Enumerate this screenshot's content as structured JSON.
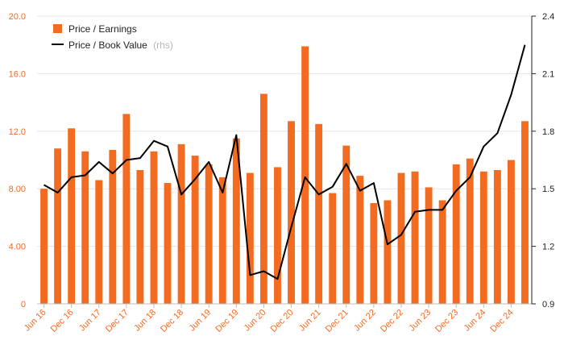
{
  "chart_data": {
    "type": "bar",
    "title": "",
    "xlabel": "",
    "ylabel": "",
    "x": [
      "Jun 16",
      "Sep 16",
      "Dec 16",
      "Mar 17",
      "Jun 17",
      "Sep 17",
      "Dec 17",
      "Mar 18",
      "Jun 18",
      "Sep 18",
      "Dec 18",
      "Mar 19",
      "Jun 19",
      "Sep 19",
      "Dec 19",
      "Mar 20",
      "Jun 20",
      "Sep 20",
      "Dec 20",
      "Mar 21",
      "Jun 21",
      "Sep 21",
      "Dec 21",
      "Mar 22",
      "Jun 22",
      "Sep 22",
      "Dec 22",
      "Mar 23",
      "Jun 23",
      "Sep 23",
      "Dec 23",
      "Mar 24",
      "Jun 24",
      "Sep 24",
      "Dec 24",
      "Mar 25"
    ],
    "x_tick_labels": [
      "Jun 16",
      "Dec 16",
      "Jun 17",
      "Dec 17",
      "Jun 18",
      "Dec 18",
      "Jun 19",
      "Dec 19",
      "Jun 20",
      "Dec 20",
      "Jun 21",
      "Dec 21",
      "Jun 22",
      "Dec 22",
      "Jun 23",
      "Dec 23",
      "Jun 24",
      "Dec 24"
    ],
    "left_axis": {
      "ylim": [
        0,
        20
      ],
      "ticks": [
        "0",
        "4.00",
        "8.00",
        "12.0",
        "16.0",
        "20.0"
      ],
      "color": "#f26b21"
    },
    "right_axis": {
      "ylim": [
        0.9,
        2.4
      ],
      "ticks": [
        "0.9",
        "1.2",
        "1.5",
        "1.8",
        "2.1",
        "2.4"
      ],
      "color": "#222222"
    },
    "grid": "horizontal",
    "legend_position": "top-left",
    "series": [
      {
        "name": "Price / Earnings",
        "kind": "bar",
        "axis": "left",
        "color": "#f26b21",
        "values": [
          8.0,
          10.8,
          12.2,
          10.6,
          8.6,
          10.7,
          13.2,
          9.3,
          10.6,
          8.4,
          11.1,
          10.3,
          9.7,
          8.8,
          11.5,
          9.1,
          14.6,
          9.5,
          12.7,
          17.9,
          12.5,
          7.7,
          11.0,
          8.9,
          7.0,
          7.2,
          9.1,
          9.2,
          8.1,
          7.2,
          9.7,
          10.1,
          9.2,
          9.3,
          10.0,
          12.7
        ]
      },
      {
        "name": "Price / Book Value",
        "legend_suffix": "(rhs)",
        "kind": "line",
        "axis": "right",
        "color": "#000000",
        "values": [
          1.52,
          1.48,
          1.56,
          1.57,
          1.64,
          1.58,
          1.65,
          1.66,
          1.75,
          1.72,
          1.47,
          1.55,
          1.64,
          1.48,
          1.78,
          1.05,
          1.07,
          1.03,
          1.3,
          1.56,
          1.47,
          1.51,
          1.63,
          1.49,
          1.53,
          1.21,
          1.26,
          1.38,
          1.39,
          1.39,
          1.49,
          1.56,
          1.72,
          1.79,
          1.99,
          2.25
        ]
      }
    ]
  }
}
